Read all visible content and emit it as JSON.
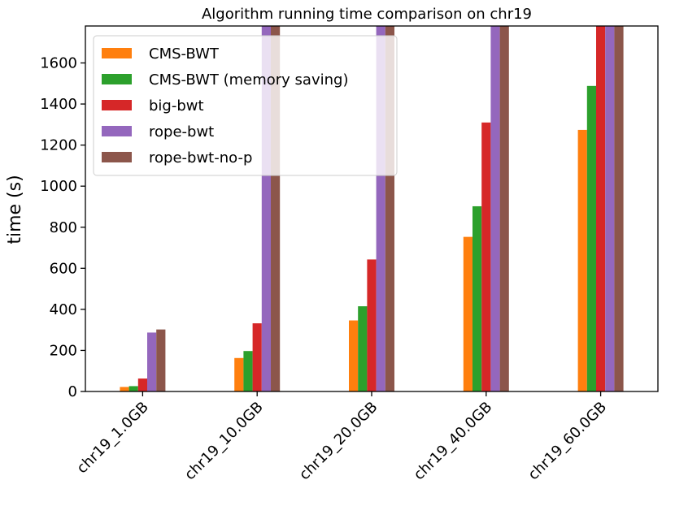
{
  "chart_data": {
    "type": "bar",
    "title": "Algorithm running time comparison on chr19",
    "xlabel": "",
    "ylabel": "time (s)",
    "ylim": [
      0,
      1780
    ],
    "yticks": [
      0,
      200,
      400,
      600,
      800,
      1000,
      1200,
      1400,
      1600
    ],
    "categories": [
      "chr19_1.0GB",
      "chr19_10.0GB",
      "chr19_20.0GB",
      "chr19_40.0GB",
      "chr19_60.0GB"
    ],
    "series": [
      {
        "name": "CMS-BWT",
        "color": "#ff7f0e",
        "values": [
          22,
          163,
          346,
          753,
          1274
        ]
      },
      {
        "name": "CMS-BWT (memory saving)",
        "color": "#2ca02c",
        "values": [
          26,
          197,
          415,
          902,
          1488
        ]
      },
      {
        "name": "big-bwt",
        "color": "#d62728",
        "values": [
          63,
          332,
          643,
          1310,
          1780
        ]
      },
      {
        "name": "rope-bwt",
        "color": "#9467bd",
        "values": [
          287,
          1780,
          1780,
          1780,
          1780
        ]
      },
      {
        "name": "rope-bwt-no-p",
        "color": "#8c564b",
        "values": [
          302,
          1780,
          1780,
          1780,
          1780
        ]
      }
    ],
    "grid": false,
    "legend_position": "top-left"
  }
}
